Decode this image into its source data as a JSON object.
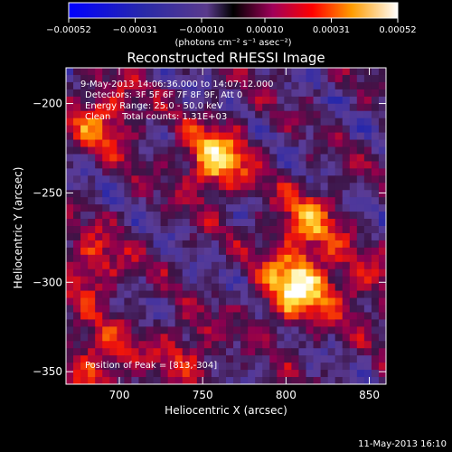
{
  "chart_data": {
    "type": "heatmap",
    "title": "Reconstructed RHESSI Image",
    "xlabel": "Heliocentric X (arcsec)",
    "ylabel": "Heliocentric Y (arcsec)",
    "xlim": [
      668,
      860
    ],
    "ylim": [
      -357,
      -180
    ],
    "x_ticks": [
      700,
      750,
      800,
      850
    ],
    "y_ticks": [
      -200,
      -250,
      -300,
      -350
    ],
    "x_tick_labels": [
      "700",
      "750",
      "800",
      "850"
    ],
    "y_tick_labels": [
      "−200",
      "−250",
      "−300",
      "−350"
    ],
    "colorbar": {
      "range": [
        -0.00052,
        0.00052
      ],
      "ticks": [
        -0.00052,
        -0.00031,
        -0.0001,
        0.0001,
        0.00031,
        0.00052
      ],
      "tick_labels": [
        "−0.00052",
        "−0.00031",
        "−0.00010",
        "0.00010",
        "0.00031",
        "0.00052"
      ],
      "unit_label": "(photons cm⁻² s⁻¹ asec⁻²)"
    },
    "info_lines": [
      "9-May-2013 14:06:36.000 to 14:07:12.000",
      "Detectors: 3F 5F 6F 7F 8F 9F, Att 0",
      "Energy Range: 25.0 - 50.0 keV",
      "Clean    Total counts: 1.31E+03"
    ],
    "peak_label": "Position of Peak = [813,-304]",
    "peak_position": [
      813,
      -304
    ],
    "sources": [
      {
        "x": 758,
        "y": -232,
        "peak": 0.00047
      },
      {
        "x": 806,
        "y": -303,
        "peak": 0.00052
      },
      {
        "x": 812,
        "y": -268,
        "peak": 0.00034
      },
      {
        "x": 690,
        "y": -208,
        "peak": 0.00033
      },
      {
        "x": 683,
        "y": -292,
        "peak": 0.00028
      },
      {
        "x": 688,
        "y": -345,
        "peak": 0.00031
      },
      {
        "x": 740,
        "y": -338,
        "peak": 0.00022
      },
      {
        "x": 845,
        "y": -302,
        "peak": 0.0002
      }
    ]
  },
  "footer": {
    "timestamp": "11-May-2013 16:10"
  }
}
